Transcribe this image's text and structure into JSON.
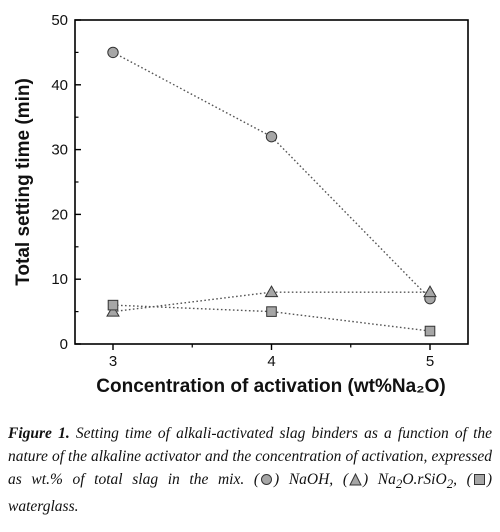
{
  "chart_data": {
    "type": "line",
    "x": [
      3,
      4,
      5
    ],
    "series": [
      {
        "name": "NaOH",
        "marker": "circle",
        "values": [
          45,
          32,
          7
        ]
      },
      {
        "name": "Na2O.rSiO2",
        "marker": "triangle",
        "values": [
          5,
          8,
          8
        ]
      },
      {
        "name": "waterglass",
        "marker": "square",
        "values": [
          6,
          5,
          2
        ]
      }
    ],
    "xlabel": "Concentration of activation (wt%Na₂O)",
    "ylabel": "Total setting time (min)",
    "xlim": [
      3,
      5
    ],
    "ylim": [
      0,
      50
    ],
    "xticks": [
      "3",
      "4",
      "5"
    ],
    "yticks": [
      "0",
      "10",
      "20",
      "30",
      "40",
      "50"
    ],
    "grid": false,
    "line_style": "dotted",
    "marker_color": "#a6a6a6"
  },
  "caption": {
    "label": "Figure 1.",
    "text_1": "Setting time of alkali-activated slag binders as a function of the nature of the alkaline activator and the concentration of activation, expressed as wt.% of total slag in the mix. (",
    "text_2": ") NaOH, (",
    "text_3": ") Na",
    "sub_2": "2",
    "text_4": "O.rSiO",
    "text_5": ", (",
    "text_6": ") waterglass."
  }
}
